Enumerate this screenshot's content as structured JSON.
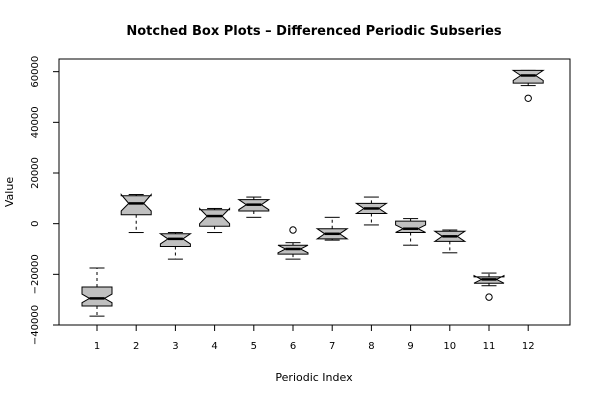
{
  "chart_data": {
    "type": "box",
    "notched": true,
    "title": "Notched Box Plots – Differenced Periodic Subseries",
    "xlabel": "Periodic Index",
    "ylabel": "Value",
    "ylim": [
      -40000,
      65000
    ],
    "yticks": [
      -40000,
      -20000,
      0,
      20000,
      40000,
      60000
    ],
    "yticklabels": [
      "−40000",
      "−20000",
      "0",
      "20000",
      "40000",
      "60000"
    ],
    "box_fill": "#c0c0c0",
    "boxes": [
      {
        "label": "1",
        "whisker_low": -36500,
        "q1": -32500,
        "median": -29500,
        "q3": -25000,
        "whisker_high": -17500,
        "notch_low": -31200,
        "notch_high": -27800,
        "outliers": []
      },
      {
        "label": "2",
        "whisker_low": -3500,
        "q1": 3500,
        "median": 8000,
        "q3": 11000,
        "whisker_high": 11500,
        "notch_low": 5000,
        "notch_high": 11500,
        "outliers": []
      },
      {
        "label": "3",
        "whisker_low": -14000,
        "q1": -9000,
        "median": -6000,
        "q3": -4000,
        "whisker_high": -3500,
        "notch_low": -8000,
        "notch_high": -4000,
        "outliers": []
      },
      {
        "label": "4",
        "whisker_low": -3500,
        "q1": -1000,
        "median": 3000,
        "q3": 5500,
        "whisker_high": 6000,
        "notch_low": 0,
        "notch_high": 6000,
        "outliers": []
      },
      {
        "label": "5",
        "whisker_low": 2500,
        "q1": 5000,
        "median": 7500,
        "q3": 9500,
        "whisker_high": 10500,
        "notch_low": 5500,
        "notch_high": 9500,
        "outliers": []
      },
      {
        "label": "6",
        "whisker_low": -14000,
        "q1": -12000,
        "median": -10000,
        "q3": -8500,
        "whisker_high": -7500,
        "notch_low": -11500,
        "notch_high": -8500,
        "outliers": [
          -2500
        ]
      },
      {
        "label": "7",
        "whisker_low": -6500,
        "q1": -6000,
        "median": -4000,
        "q3": -2000,
        "whisker_high": 2500,
        "notch_low": -6000,
        "notch_high": -2000,
        "outliers": []
      },
      {
        "label": "8",
        "whisker_low": -500,
        "q1": 4000,
        "median": 6000,
        "q3": 8000,
        "whisker_high": 10500,
        "notch_low": 4000,
        "notch_high": 8000,
        "outliers": []
      },
      {
        "label": "9",
        "whisker_low": -8500,
        "q1": -3500,
        "median": -2000,
        "q3": 1000,
        "whisker_high": 2000,
        "notch_low": -3500,
        "notch_high": -500,
        "outliers": []
      },
      {
        "label": "10",
        "whisker_low": -11500,
        "q1": -7000,
        "median": -5000,
        "q3": -3000,
        "whisker_high": -2500,
        "notch_low": -7000,
        "notch_high": -3000,
        "outliers": []
      },
      {
        "label": "11",
        "whisker_low": -24500,
        "q1": -23500,
        "median": -22000,
        "q3": -21000,
        "whisker_high": -19500,
        "notch_low": -23500,
        "notch_high": -20500,
        "outliers": [
          -29000
        ]
      },
      {
        "label": "12",
        "whisker_low": 54500,
        "q1": 55500,
        "median": 58500,
        "q3": 60500,
        "whisker_high": 60500,
        "notch_low": 56500,
        "notch_high": 60500,
        "outliers": [
          49500
        ]
      }
    ]
  }
}
